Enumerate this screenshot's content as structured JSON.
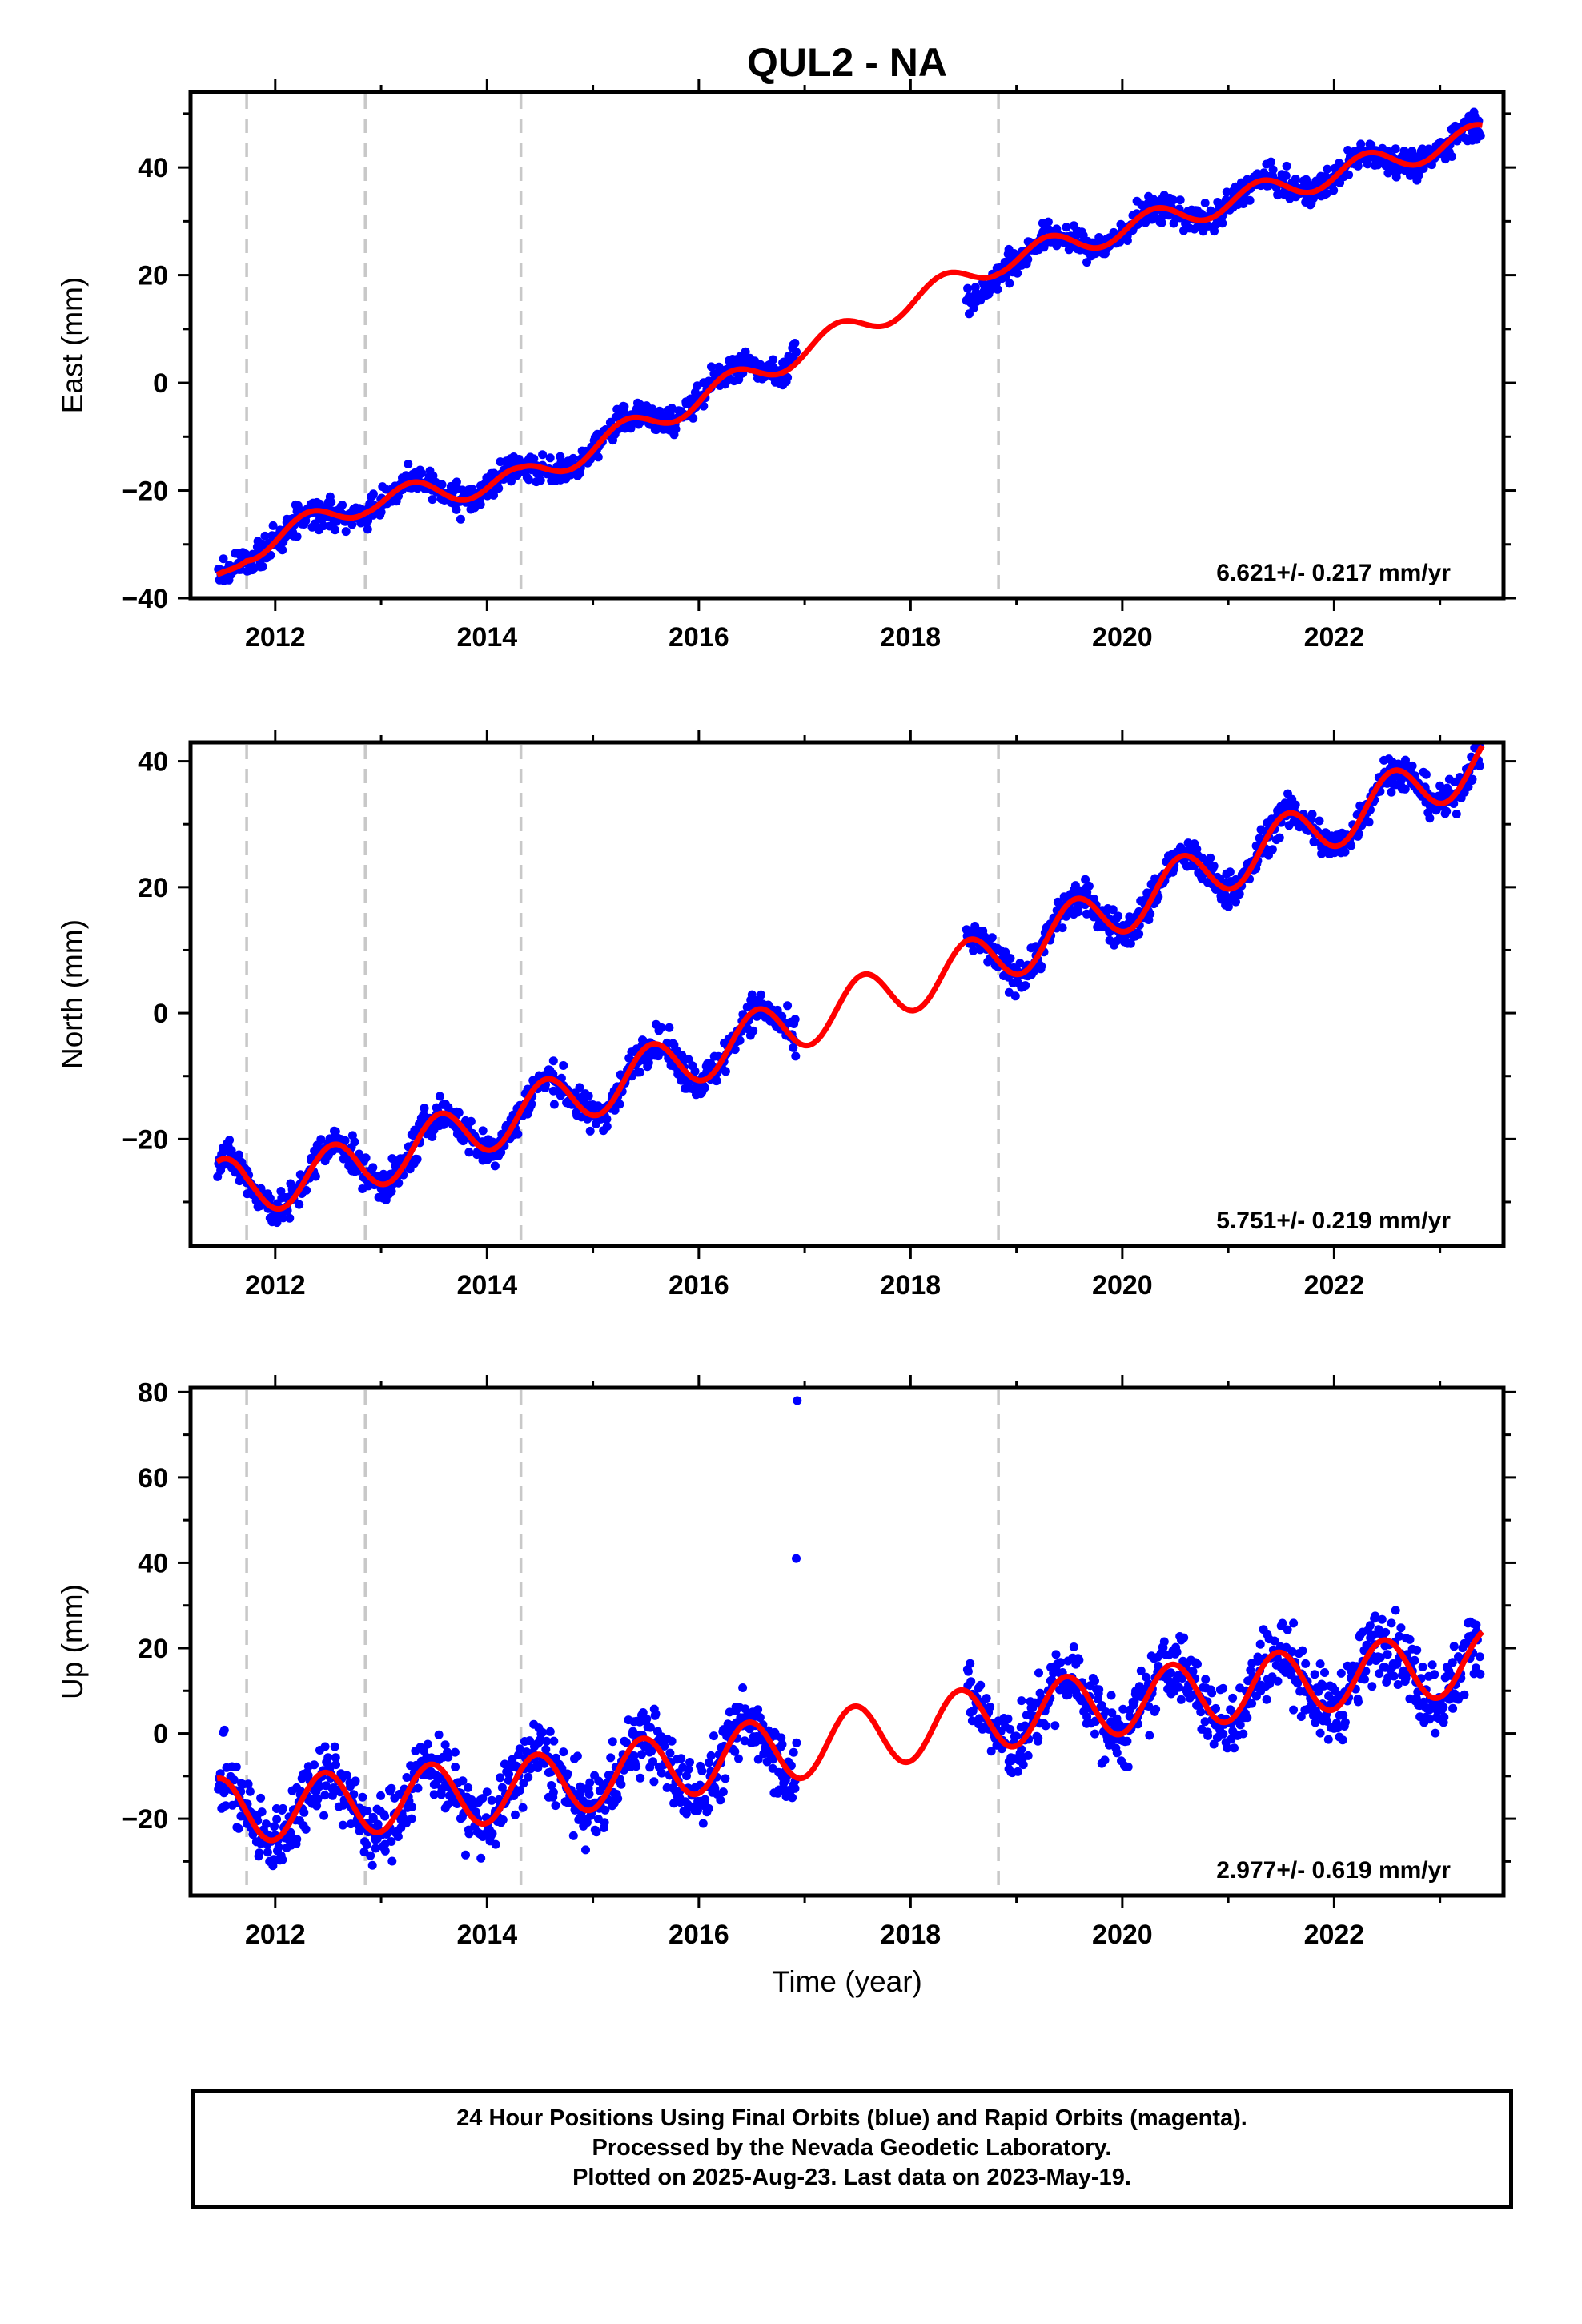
{
  "chart_data": {
    "title": "QUL2 - NA",
    "xlabel": "Time (year)",
    "x_ticks": [
      "2012",
      "2014",
      "2016",
      "2018",
      "2020",
      "2022"
    ],
    "xlim": [
      2011.2,
      2023.6
    ],
    "breaks": [
      2011.73,
      2012.85,
      2014.32,
      2018.83
    ],
    "data_gap": [
      2016.92,
      2018.53
    ],
    "colors": {
      "data": "#0000ff",
      "model": "#ff0000",
      "breaks": "#c8c8c8"
    },
    "panels": [
      {
        "type": "scatter",
        "ylabel": "East (mm)",
        "ylim": [
          -40,
          54
        ],
        "y_ticks": [
          -40,
          -20,
          0,
          20,
          40
        ],
        "rate": "6.621+/- 0.217 mm/yr",
        "model": {
          "knots": [
            [
              2011.45,
              -37
            ],
            [
              2011.73,
              -31
            ],
            [
              2012.85,
              -22
            ],
            [
              2014.32,
              -18
            ],
            [
              2018.83,
              22.5
            ],
            [
              2023.4,
              46
            ]
          ],
          "annual_amp": 2.3,
          "annual_phase": 0.05
        },
        "data": {
          "knots": [
            [
              2011.45,
              -37
            ],
            [
              2011.73,
              -31
            ],
            [
              2012.85,
              -22
            ],
            [
              2014.32,
              -18
            ],
            [
              2016.85,
              5.5
            ],
            [
              2016.95,
              8.5
            ],
            [
              2018.55,
              15
            ],
            [
              2018.83,
              22.5
            ],
            [
              2023.4,
              46
            ]
          ],
          "noise": 1.3
        }
      },
      {
        "type": "scatter",
        "ylabel": "North (mm)",
        "ylim": [
          -37,
          43
        ],
        "y_ticks": [
          -20,
          0,
          20,
          40
        ],
        "rate": "5.751+/- 0.219 mm/yr",
        "model": {
          "knots": [
            [
              2011.45,
              -27
            ],
            [
              2011.73,
              -28
            ],
            [
              2012.85,
              -24
            ],
            [
              2014.32,
              -16
            ],
            [
              2018.83,
              9
            ],
            [
              2023.4,
              40
            ]
          ],
          "annual_amp": 4.2,
          "annual_phase": 0.3
        },
        "data": {
          "knots": [
            [
              2011.45,
              -27
            ],
            [
              2011.73,
              -28
            ],
            [
              2012.85,
              -24
            ],
            [
              2014.32,
              -16
            ],
            [
              2018.83,
              9
            ],
            [
              2023.4,
              40
            ]
          ],
          "noise": 1.4
        }
      },
      {
        "type": "scatter",
        "ylabel": "Up (mm)",
        "ylim": [
          -38,
          81
        ],
        "y_ticks": [
          -20,
          0,
          20,
          40,
          60,
          80
        ],
        "rate": "2.977+/- 0.619 mm/yr",
        "model": {
          "knots": [
            [
              2011.45,
              -18
            ],
            [
              2011.73,
              -18
            ],
            [
              2012.85,
              -16
            ],
            [
              2014.32,
              -13
            ],
            [
              2018.83,
              4
            ],
            [
              2023.4,
              17
            ]
          ],
          "annual_amp": 7.5,
          "annual_phase": 0.22
        },
        "data": {
          "knots": [
            [
              2011.45,
              -18
            ],
            [
              2011.73,
              -18
            ],
            [
              2012.85,
              -16
            ],
            [
              2014.32,
              -13
            ],
            [
              2018.83,
              4
            ],
            [
              2023.4,
              17
            ]
          ],
          "noise": 4.2
        },
        "outliers": [
          [
            2016.93,
            78
          ],
          [
            2016.92,
            41
          ]
        ]
      }
    ]
  },
  "footer": {
    "line1": "24 Hour Positions Using Final Orbits (blue) and Rapid Orbits (magenta).",
    "line2": "Processed by the Nevada Geodetic Laboratory.",
    "line3": "Plotted on 2025-Aug-23. Last data on 2023-May-19."
  }
}
